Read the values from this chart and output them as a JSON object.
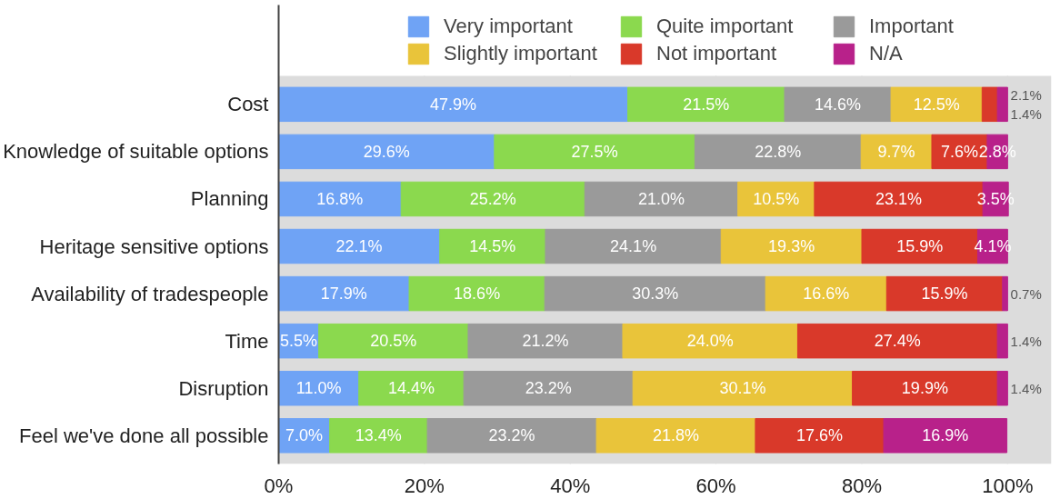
{
  "chart_data": {
    "type": "bar",
    "orientation": "horizontal",
    "stacked": true,
    "categories": [
      "Cost",
      "Knowledge of suitable options",
      "Planning",
      "Heritage sensitive options",
      "Availability of tradespeople",
      "Time",
      "Disruption",
      "Feel we've done all possible"
    ],
    "series": [
      {
        "name": "Very important",
        "color": "#6fa3f5",
        "values": [
          47.9,
          29.6,
          16.8,
          22.1,
          17.9,
          5.5,
          11.0,
          7.0
        ],
        "value_labels": [
          "47.9%",
          "29.6%",
          "16.8%",
          "22.1%",
          "17.9%",
          "5.5%",
          "11.0%",
          "7.0%"
        ]
      },
      {
        "name": "Quite important",
        "color": "#8bd94e",
        "values": [
          21.5,
          27.5,
          25.2,
          14.5,
          18.6,
          20.5,
          14.4,
          13.4
        ],
        "value_labels": [
          "21.5%",
          "27.5%",
          "25.2%",
          "14.5%",
          "18.6%",
          "20.5%",
          "14.4%",
          "13.4%"
        ]
      },
      {
        "name": "Important",
        "color": "#9a9a9a",
        "values": [
          14.6,
          22.8,
          21.0,
          24.1,
          30.3,
          21.2,
          23.2,
          23.2
        ],
        "value_labels": [
          "14.6%",
          "22.8%",
          "21.0%",
          "24.1%",
          "30.3%",
          "21.2%",
          "23.2%",
          "23.2%"
        ]
      },
      {
        "name": "Slightly important",
        "color": "#e9c43a",
        "values": [
          12.5,
          9.7,
          10.5,
          19.3,
          16.6,
          24.0,
          30.1,
          21.8
        ],
        "value_labels": [
          "12.5%",
          "9.7%",
          "10.5%",
          "19.3%",
          "16.6%",
          "24.0%",
          "30.1%",
          "21.8%"
        ]
      },
      {
        "name": "Not important",
        "color": "#d9392a",
        "values": [
          2.1,
          7.6,
          23.1,
          15.9,
          15.9,
          27.4,
          19.9,
          17.6
        ],
        "value_labels": [
          "2.1%",
          "7.6%",
          "23.1%",
          "15.9%",
          "15.9%",
          "27.4%",
          "19.9%",
          "17.6%"
        ]
      },
      {
        "name": "N/A",
        "color": "#b8218a",
        "values": [
          1.4,
          2.8,
          3.5,
          4.1,
          0.7,
          1.4,
          1.4,
          16.9
        ],
        "value_labels": [
          "1.4%",
          "2.8%",
          "3.5%",
          "4.1%",
          "0.7%",
          "1.4%",
          "1.4%",
          "16.9%"
        ]
      }
    ],
    "xlim": [
      0,
      106
    ],
    "xticks": [
      {
        "value": 0,
        "label": "0%"
      },
      {
        "value": 20,
        "label": "20%"
      },
      {
        "value": 40,
        "label": "40%"
      },
      {
        "value": 60,
        "label": "60%"
      },
      {
        "value": 80,
        "label": "80%"
      },
      {
        "value": 100,
        "label": "100%"
      }
    ],
    "grid": "x",
    "legend": "top"
  }
}
